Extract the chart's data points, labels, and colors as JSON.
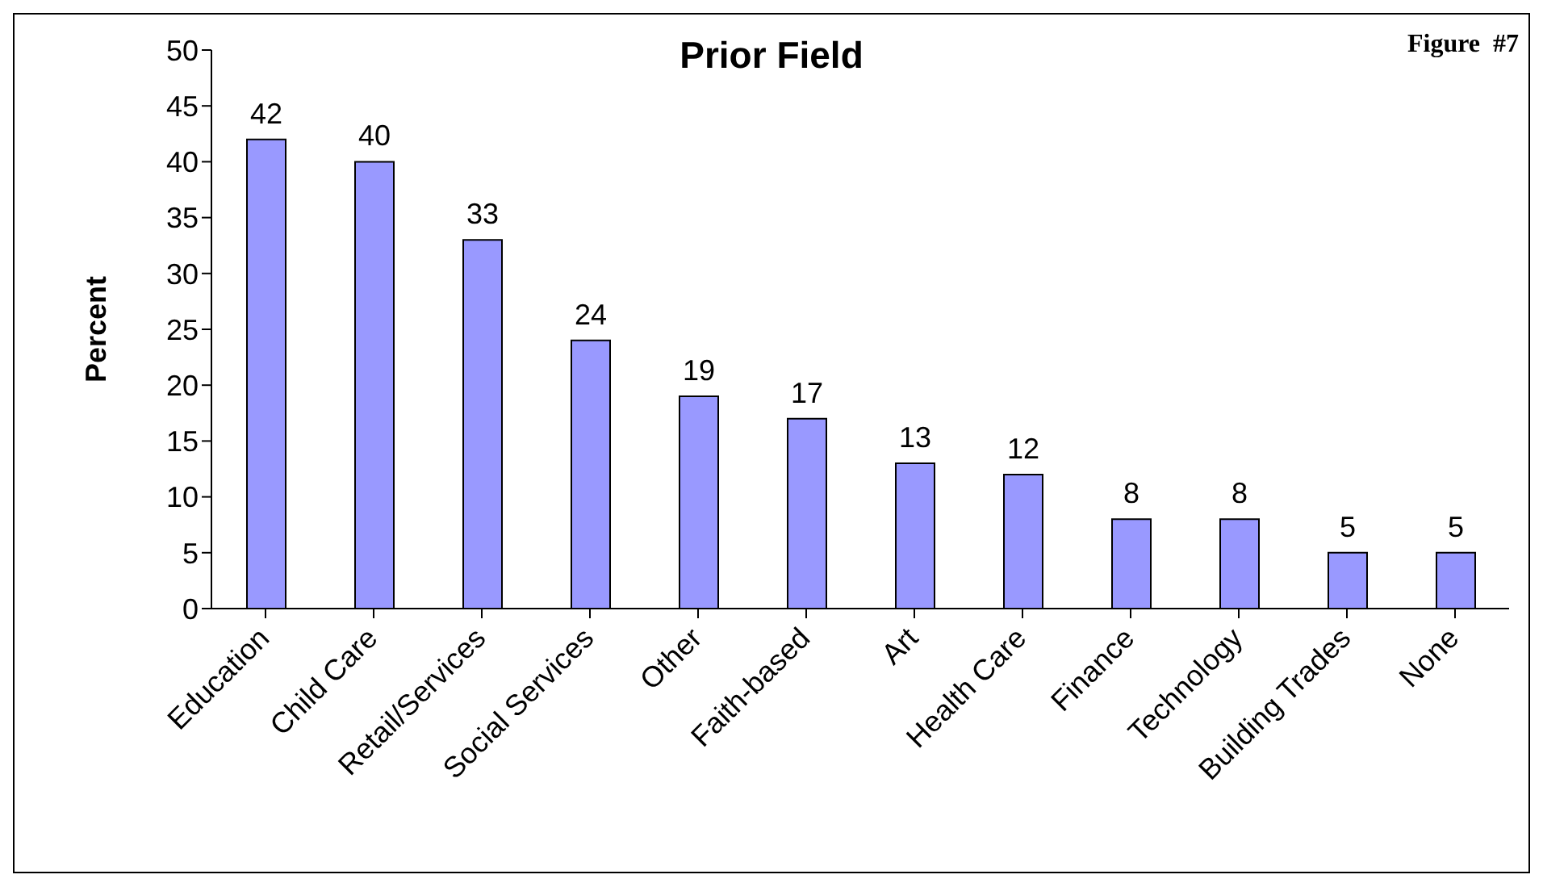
{
  "chart_data": {
    "type": "bar",
    "title": "Prior Field",
    "ylabel": "Percent",
    "annotations": [
      "Figure  #7"
    ],
    "categories": [
      "Education",
      "Child Care",
      "Retail/Services",
      "Social Services",
      "Other",
      "Faith-based",
      "Art",
      "Health Care",
      "Finance",
      "Technology",
      "Building Trades",
      "None"
    ],
    "values": [
      42,
      40,
      33,
      24,
      19,
      17,
      13,
      12,
      8,
      8,
      5,
      5
    ],
    "color": "#9999ff",
    "ylim": [
      0,
      50
    ],
    "yticks": [
      0,
      5,
      10,
      15,
      20,
      25,
      30,
      35,
      40,
      45,
      50
    ],
    "data_labels": true
  }
}
